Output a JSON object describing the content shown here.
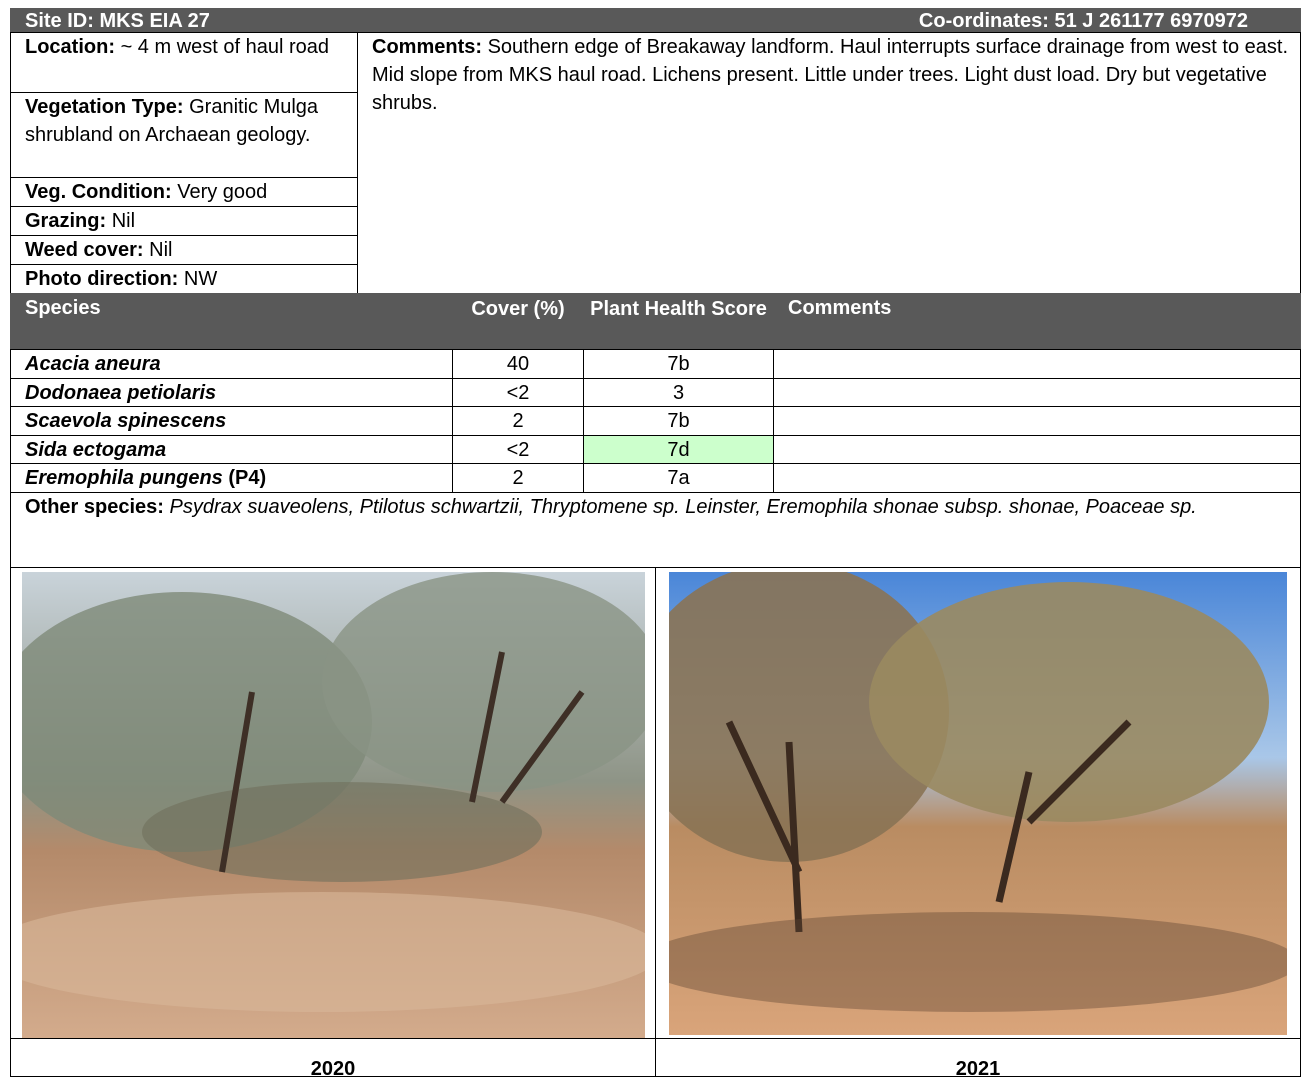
{
  "header": {
    "site_id": "Site ID: MKS EIA 27",
    "coordinates": "Co-ordinates: 51 J 261177 6970972"
  },
  "site_info": [
    {
      "label": "Location:",
      "value": "~ 4 m west of haul road"
    },
    {
      "label": "Vegetation Type:",
      "value": "Granitic Mulga shrubland on Archaean geology."
    },
    {
      "label": "Veg. Condition:",
      "value": "Very good"
    },
    {
      "label": "Grazing:",
      "value": "Nil"
    },
    {
      "label": "Weed cover:",
      "value": "Nil"
    },
    {
      "label": "Photo direction:",
      "value": "NW"
    }
  ],
  "site_comments": {
    "label": "Comments:",
    "value": "Southern edge of Breakaway landform. Haul interrupts surface drainage from west to east. Mid slope from MKS haul road. Lichens present. Little under trees. Light dust load. Dry but vegetative shrubs."
  },
  "species_table": {
    "columns": [
      "Species",
      "Cover (%)",
      "Plant Health Score",
      "Comments"
    ],
    "rows": [
      {
        "species": "Acacia aneura",
        "cover": "40",
        "health": "7b"
      },
      {
        "species": "Dodonaea petiolaris",
        "cover": "<2",
        "health": "3"
      },
      {
        "species": "Scaevola spinescens",
        "cover": "2",
        "health": "7b"
      },
      {
        "species": "Sida ectogama",
        "cover": "<2",
        "health": "7d",
        "highlight": "#ccffcc"
      },
      {
        "species": "Eremophila pungens",
        "status": "(P4)",
        "cover": "2",
        "health": "7a"
      }
    ]
  },
  "other_species": {
    "label": "Other species:",
    "value": "Psydrax suaveolens, Ptilotus schwartzii, Thryptomene sp. Leinster, Eremophila shonae subsp. shonae, Poaceae sp."
  },
  "photos": [
    {
      "caption": "2020"
    },
    {
      "caption": "2021"
    }
  ]
}
